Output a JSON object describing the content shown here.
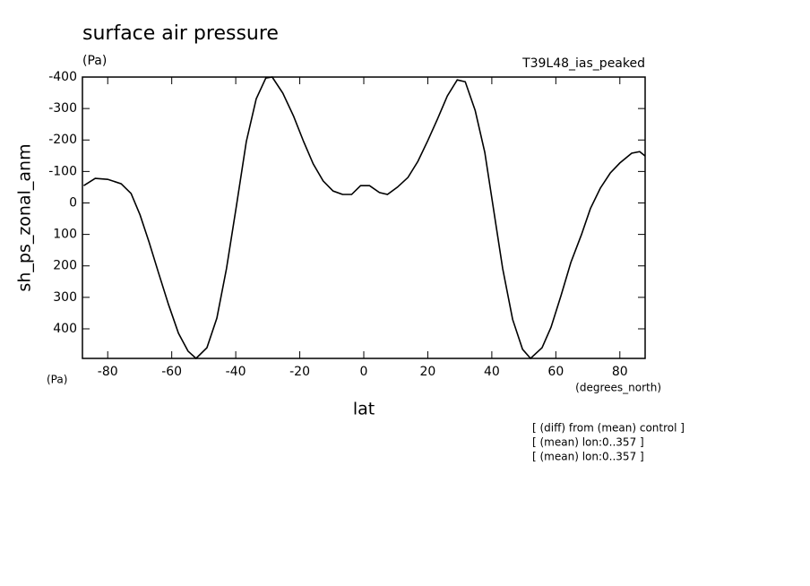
{
  "chart_data": {
    "type": "line",
    "title": "surface air pressure",
    "units_top": "(Pa)",
    "experiment": "T39L48_ias_peaked",
    "y_label": "sh_ps_zonal_anm",
    "units_bottom": "(Pa)",
    "x_units": "(degrees_north)",
    "x_label": "lat",
    "notes": [
      "[ (diff) from (mean) control ]",
      "[ (mean) lon:0..357 ]",
      "[ (mean) lon:0..357 ]"
    ],
    "x": [
      -87.5,
      -83.9,
      -80,
      -75.8,
      -72.7,
      -69.9,
      -67.1,
      -64.1,
      -61.0,
      -57.9,
      -54.9,
      -52.4,
      -49.0,
      -45.9,
      -42.9,
      -39.8,
      -36.7,
      -33.6,
      -30.6,
      -28.6,
      -25.3,
      -21.9,
      -18.8,
      -15.8,
      -12.7,
      -9.6,
      -6.6,
      -3.8,
      -1.0,
      1.8,
      4.9,
      7.4,
      10.5,
      13.8,
      16.9,
      20.0,
      23.0,
      26.1,
      29.2,
      31.7,
      34.8,
      37.8,
      40.6,
      43.4,
      46.5,
      49.6,
      52.1,
      55.7,
      58.5,
      61.6,
      64.7,
      68.0,
      70.8,
      73.9,
      77.0,
      80.0,
      83.7,
      86.2,
      87.9
    ],
    "series": [
      {
        "color": "#000000",
        "values": [
          -55,
          -78,
          -75,
          -61,
          -30,
          38,
          124,
          223,
          323,
          414,
          471,
          494,
          460,
          366,
          209,
          10,
          -195,
          -331,
          -397,
          -400,
          -349,
          -275,
          -195,
          -124,
          -70,
          -38,
          -27,
          -27,
          -55,
          -55,
          -33,
          -27,
          -50,
          -81,
          -132,
          -198,
          -266,
          -340,
          -391,
          -385,
          -294,
          -161,
          24,
          209,
          370,
          465,
          494,
          460,
          395,
          295,
          189,
          101,
          18,
          -47,
          -95,
          -127,
          -158,
          -163,
          -149
        ]
      }
    ],
    "xlim": [
      -87.9,
      87.9
    ],
    "ylim": [
      -400,
      494
    ],
    "xticks": [
      -80,
      -60,
      -40,
      -20,
      0,
      20,
      40,
      60,
      80
    ],
    "yticks": [
      -400,
      -300,
      -200,
      -100,
      0,
      100,
      200,
      300,
      400
    ]
  }
}
